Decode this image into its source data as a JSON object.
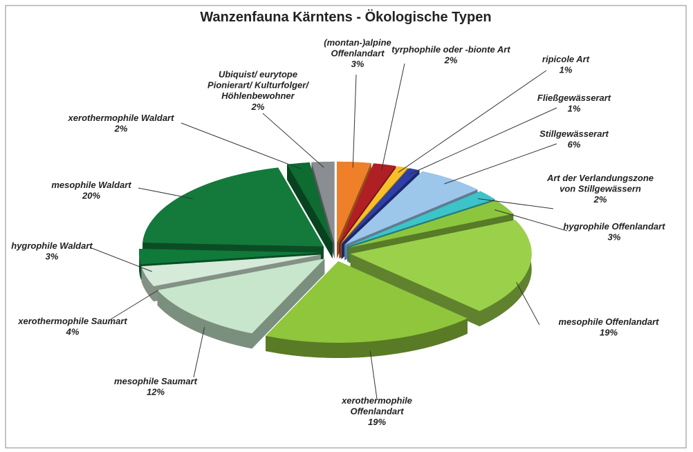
{
  "chart_data": {
    "type": "pie",
    "title": "Wanzenfauna Kärntens - Ökologische Typen",
    "categories": [
      "(montan-)alpine\nOffenlandart",
      "tyrphophile oder -bionte Art",
      "ripicole Art",
      "Fließgewässerart",
      "Stillgewässerart",
      "Art der Verlandungszone\nvon Stillgewässern",
      "hygrophile Offenlandart",
      "mesophile Offenlandart",
      "xerothermophile\nOffenlandart",
      "mesophile Saumart",
      "xerothermophile Saumart",
      "hygrophile Waldart",
      "mesophile Waldart",
      "xerothermophile Waldart",
      "Ubiquist/ eurytope\nPionierart/ Kulturfolger/\nHöhlenbewohner"
    ],
    "values": [
      3,
      2,
      1,
      1,
      6,
      2,
      3,
      19,
      19,
      12,
      4,
      3,
      20,
      2,
      2
    ],
    "value_labels": [
      "3%",
      "2%",
      "1%",
      "1%",
      "6%",
      "2%",
      "3%",
      "19%",
      "19%",
      "12%",
      "4%",
      "3%",
      "20%",
      "2%",
      "2%"
    ],
    "colors": [
      "#f07f2a",
      "#b01f24",
      "#f5c02a",
      "#2e3fa8",
      "#9cc6ea",
      "#3cc4c8",
      "#8cc63f",
      "#9bd14a",
      "#8fc63c",
      "#c7e6cc",
      "#d5ead8",
      "#0f7a3a",
      "#137a3c",
      "#0e6b32",
      "#8a8d91"
    ]
  }
}
